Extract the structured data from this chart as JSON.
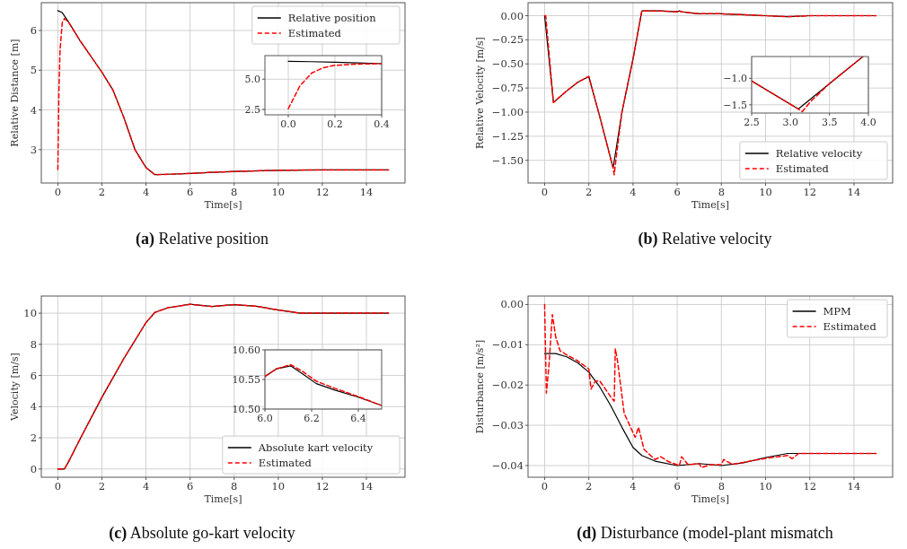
{
  "chart_data": [
    {
      "type": "line",
      "ylabel": "Relative Distance [m]",
      "xlabel": "Time[s]",
      "annotations": [
        "(a) Relative position"
      ],
      "xlim": [
        -0.75,
        15.75
      ],
      "ylim": [
        2.16,
        6.7
      ],
      "xticks": [
        0,
        2,
        4,
        6,
        8,
        10,
        12,
        14
      ],
      "yticks": [
        3,
        4,
        5,
        6
      ],
      "grid": true,
      "legend": "top right",
      "marker": "none",
      "series": [
        {
          "name": "Relative position",
          "color": "#000000",
          "line_style": "solid",
          "x": [
            0,
            0.2,
            0.5,
            1,
            1.5,
            2,
            2.5,
            3,
            3.5,
            4,
            4.4,
            5,
            6,
            7,
            8,
            10,
            12,
            15
          ],
          "values": [
            6.5,
            6.45,
            6.2,
            5.75,
            5.35,
            4.95,
            4.5,
            3.8,
            3.0,
            2.55,
            2.37,
            2.38,
            2.4,
            2.43,
            2.45,
            2.48,
            2.49,
            2.49
          ]
        },
        {
          "name": "Estimated",
          "color": "#ff0000",
          "line_style": "dashed",
          "x": [
            0,
            0.05,
            0.1,
            0.2,
            0.3,
            0.5,
            1,
            1.5,
            2,
            2.5,
            3,
            3.5,
            4,
            4.4,
            5,
            6,
            7,
            8,
            10,
            12,
            15
          ],
          "values": [
            2.5,
            4.5,
            5.5,
            6.2,
            6.3,
            6.2,
            5.75,
            5.35,
            4.95,
            4.5,
            3.8,
            3.0,
            2.55,
            2.37,
            2.38,
            2.4,
            2.43,
            2.45,
            2.48,
            2.49,
            2.49
          ]
        }
      ]
    },
    {
      "type": "line",
      "xlim": [
        -0.1,
        0.4
      ],
      "ylim": [
        2.05,
        6.95
      ],
      "xticks": [
        {
          "value": 0,
          "label": "0.0"
        },
        0.2,
        0.4
      ],
      "yticks": [
        2.5,
        {
          "value": 5,
          "label": "5.0"
        }
      ],
      "grid": true,
      "marker": "none",
      "series": [
        {
          "color": "#000000",
          "line_style": "solid",
          "x": [
            0,
            0.1,
            0.2,
            0.3,
            0.4
          ],
          "values": [
            6.48,
            6.45,
            6.4,
            6.34,
            6.28
          ]
        },
        {
          "color": "#ff0000",
          "line_style": "dashed",
          "x": [
            0,
            0.05,
            0.1,
            0.15,
            0.2,
            0.3,
            0.4
          ],
          "values": [
            2.55,
            4.45,
            5.5,
            5.95,
            6.15,
            6.25,
            6.28
          ]
        }
      ]
    },
    {
      "type": "line",
      "ylabel": "Relative Velocity [m/s]",
      "xlabel": "Time[s]",
      "annotations": [
        "(b) Relative velocity"
      ],
      "xlim": [
        -0.75,
        15.75
      ],
      "ylim": [
        -1.735,
        0.135
      ],
      "xticks": [
        0,
        2,
        4,
        6,
        8,
        10,
        12,
        14
      ],
      "yticks": [
        {
          "value": 0,
          "label": "0.00"
        },
        {
          "value": -0.25,
          "label": "−0.25"
        },
        {
          "value": -0.5,
          "label": "−0.50"
        },
        {
          "value": -0.75,
          "label": "−0.75"
        },
        {
          "value": -1,
          "label": "−1.00"
        },
        {
          "value": -1.25,
          "label": "−1.25"
        },
        {
          "value": -1.5,
          "label": "−1.50"
        }
      ],
      "grid": true,
      "legend": "bottom right",
      "marker": "none",
      "series": [
        {
          "name": "Relative velocity",
          "color": "#000000",
          "line_style": "solid",
          "x": [
            0,
            0.4,
            1,
            1.5,
            2,
            2.5,
            3.1,
            3.5,
            4,
            4.4,
            5,
            5.2,
            6,
            6.1,
            6.2,
            7,
            8,
            9,
            10,
            11,
            12,
            15
          ],
          "values": [
            0,
            -0.9,
            -0.78,
            -0.69,
            -0.63,
            -1.05,
            -1.58,
            -1.0,
            -0.45,
            0.05,
            0.05,
            0.05,
            0.04,
            0.05,
            0.04,
            0.02,
            0.02,
            0.01,
            0.0,
            -0.01,
            0,
            0
          ]
        },
        {
          "name": "Estimated",
          "color": "#ff0000",
          "line_style": "dashed",
          "x": [
            0,
            0.05,
            0.4,
            1,
            1.5,
            2,
            2.5,
            3.1,
            3.15,
            3.25,
            3.5,
            4,
            4.4,
            5,
            5.2,
            6,
            6.1,
            6.2,
            7,
            8,
            9,
            10,
            11,
            12,
            15
          ],
          "values": [
            0,
            0,
            -0.9,
            -0.78,
            -0.69,
            -0.63,
            -1.05,
            -1.58,
            -1.65,
            -1.45,
            -1.0,
            -0.45,
            0.05,
            0.05,
            0.05,
            0.04,
            0.05,
            0.04,
            0.02,
            0.02,
            0.01,
            0.0,
            -0.01,
            0,
            0
          ]
        }
      ]
    },
    {
      "type": "line",
      "xlim": [
        2.5,
        4.0
      ],
      "ylim": [
        -1.655,
        -0.59
      ],
      "xticks": [
        2.5,
        {
          "value": 3,
          "label": "3.0"
        },
        3.5,
        {
          "value": 4,
          "label": "4.0"
        }
      ],
      "yticks": [
        {
          "value": -1,
          "label": "−1.0"
        },
        {
          "value": -1.5,
          "label": "−1.5"
        }
      ],
      "grid": true,
      "marker": "none",
      "series": [
        {
          "color": "#000000",
          "line_style": "solid",
          "x": [
            2.5,
            3.1,
            3.5,
            3.93
          ],
          "values": [
            -1.05,
            -1.58,
            -1.1,
            -0.59
          ]
        },
        {
          "color": "#ff0000",
          "line_style": "dashed",
          "x": [
            2.5,
            3.1,
            3.15,
            3.25,
            3.5,
            3.93
          ],
          "values": [
            -1.05,
            -1.58,
            -1.63,
            -1.45,
            -1.1,
            -0.59
          ]
        }
      ]
    },
    {
      "type": "line",
      "ylabel": "Velocity [m/s]",
      "xlabel": "Time[s]",
      "annotations": [
        "(c) Absolute go-kart velocity"
      ],
      "xlim": [
        -0.75,
        15.75
      ],
      "ylim": [
        -0.53,
        11.1
      ],
      "xticks": [
        0,
        2,
        4,
        6,
        8,
        10,
        12,
        14
      ],
      "yticks": [
        0,
        2,
        4,
        6,
        8,
        10
      ],
      "grid": true,
      "legend": "bottom right",
      "marker": "none",
      "series": [
        {
          "name": "Absolute kart velocity",
          "color": "#000000",
          "line_style": "solid",
          "x": [
            0,
            0.3,
            0.5,
            1,
            2,
            3,
            4,
            4.4,
            5,
            6,
            7,
            8,
            9,
            10,
            11,
            15
          ],
          "values": [
            0,
            0,
            0.5,
            1.9,
            4.6,
            7.1,
            9.4,
            10.05,
            10.35,
            10.57,
            10.43,
            10.55,
            10.45,
            10.2,
            10,
            10
          ]
        },
        {
          "name": "Estimated",
          "color": "#ff0000",
          "line_style": "dashed",
          "x": [
            0,
            0.3,
            0.5,
            1,
            2,
            3,
            4,
            4.4,
            5,
            6,
            7,
            8,
            9,
            10,
            11,
            15
          ],
          "values": [
            0,
            0,
            0.5,
            1.9,
            4.6,
            7.1,
            9.4,
            10.05,
            10.35,
            10.57,
            10.43,
            10.55,
            10.45,
            10.2,
            10,
            10
          ]
        }
      ]
    },
    {
      "type": "line",
      "xlim": [
        6.0,
        6.5
      ],
      "ylim": [
        10.5,
        10.6
      ],
      "xticks": [
        {
          "value": 6,
          "label": "6.0"
        },
        6.2,
        6.4
      ],
      "yticks": [
        {
          "value": 10.5,
          "label": "10.50"
        },
        10.55,
        {
          "value": 10.6,
          "label": "10.60"
        }
      ],
      "grid": true,
      "marker": "none",
      "series": [
        {
          "color": "#000000",
          "line_style": "solid",
          "x": [
            6.0,
            6.05,
            6.11,
            6.16,
            6.22,
            6.3,
            6.4,
            6.5
          ],
          "values": [
            10.555,
            10.568,
            10.573,
            10.56,
            10.543,
            10.532,
            10.52,
            10.506
          ]
        },
        {
          "color": "#ff0000",
          "line_style": "dashed",
          "x": [
            6.0,
            6.05,
            6.11,
            6.16,
            6.22,
            6.3,
            6.4,
            6.5
          ],
          "values": [
            10.555,
            10.568,
            10.575,
            10.564,
            10.547,
            10.535,
            10.521,
            10.506
          ]
        }
      ]
    },
    {
      "type": "line",
      "ylabel": "Disturbance [m/s²]",
      "xlabel": "Time[s]",
      "annotations": [
        "(d) Disturbance (model-plant mismatch"
      ],
      "xlim": [
        -0.75,
        15.75
      ],
      "ylim": [
        -0.0429,
        0.0021
      ],
      "xticks": [
        0,
        2,
        4,
        6,
        8,
        10,
        12,
        14
      ],
      "yticks": [
        {
          "value": 0,
          "label": "0.00"
        },
        {
          "value": -0.01,
          "label": "−0.01"
        },
        {
          "value": -0.02,
          "label": "−0.02"
        },
        {
          "value": -0.03,
          "label": "−0.03"
        },
        {
          "value": -0.04,
          "label": "−0.04"
        }
      ],
      "grid": true,
      "legend": "top right",
      "marker": "none",
      "series": [
        {
          "name": "MPM",
          "color": "#000000",
          "line_style": "solid",
          "x": [
            0,
            0.5,
            1,
            1.5,
            2,
            2.5,
            3,
            3.5,
            4,
            4.4,
            5,
            6,
            7,
            8,
            9,
            10,
            11,
            15
          ],
          "values": [
            -0.0122,
            -0.0122,
            -0.013,
            -0.0145,
            -0.0168,
            -0.0205,
            -0.0252,
            -0.0305,
            -0.0355,
            -0.0375,
            -0.0389,
            -0.04,
            -0.0395,
            -0.04,
            -0.0393,
            -0.038,
            -0.037,
            -0.037
          ]
        },
        {
          "name": "Estimated",
          "color": "#ff0000",
          "line_style": "dashed",
          "x": [
            0,
            0.08,
            0.2,
            0.35,
            0.5,
            0.7,
            1,
            1.5,
            2,
            2.1,
            2.3,
            2.5,
            3,
            3.15,
            3.2,
            3.3,
            3.6,
            4.1,
            4.25,
            4.5,
            5,
            5.25,
            5.6,
            6.1,
            6.2,
            6.5,
            7,
            7.1,
            7.5,
            8,
            8.1,
            8.5,
            9,
            10,
            11,
            11.2,
            11.5,
            15
          ],
          "values": [
            0,
            -0.022,
            -0.015,
            -0.0025,
            -0.008,
            -0.0115,
            -0.0125,
            -0.014,
            -0.016,
            -0.021,
            -0.019,
            -0.019,
            -0.023,
            -0.024,
            -0.011,
            -0.014,
            -0.027,
            -0.033,
            -0.0305,
            -0.036,
            -0.0385,
            -0.0378,
            -0.039,
            -0.04,
            -0.0378,
            -0.0398,
            -0.0395,
            -0.0405,
            -0.0398,
            -0.0398,
            -0.0385,
            -0.0397,
            -0.0392,
            -0.0382,
            -0.0375,
            -0.0383,
            -0.037,
            -0.037
          ]
        }
      ]
    }
  ]
}
